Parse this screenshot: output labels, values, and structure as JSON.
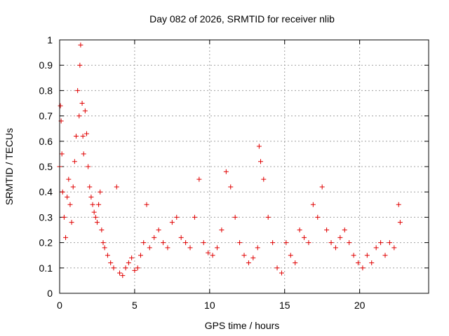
{
  "chart_data": {
    "type": "scatter",
    "title": "Day 082 of 2026, SRMTID for receiver nlib",
    "xlabel": "GPS time / hours",
    "ylabel": "SRMTID / TECUs",
    "xlim": [
      0,
      24.6
    ],
    "ylim": [
      0,
      1
    ],
    "xticks": [
      0,
      5,
      10,
      15,
      20
    ],
    "xtick_labels": [
      "0",
      "5",
      "10",
      "15",
      "20"
    ],
    "yticks": [
      0,
      0.1,
      0.2,
      0.3,
      0.4,
      0.5,
      0.6,
      0.7,
      0.8,
      0.9,
      1
    ],
    "ytick_labels": [
      "0",
      "0.1",
      "0.2",
      "0.3",
      "0.4",
      "0.5",
      "0.6",
      "0.7",
      "0.8",
      "0.9",
      "1"
    ],
    "grid": true,
    "marker": "+",
    "color": "#e00000",
    "series": [
      {
        "name": "SRMTID",
        "x": [
          0.0,
          0.05,
          0.1,
          0.15,
          0.2,
          0.3,
          0.4,
          0.5,
          0.6,
          0.7,
          0.8,
          0.9,
          1.0,
          1.1,
          1.2,
          1.3,
          1.35,
          1.4,
          1.5,
          1.55,
          1.6,
          1.7,
          1.8,
          1.9,
          2.0,
          2.1,
          2.2,
          2.3,
          2.4,
          2.5,
          2.6,
          2.7,
          2.8,
          2.9,
          3.0,
          3.2,
          3.4,
          3.6,
          3.8,
          4.0,
          4.2,
          4.4,
          4.6,
          4.8,
          5.0,
          5.2,
          5.4,
          5.6,
          5.8,
          6.0,
          6.3,
          6.6,
          6.9,
          7.2,
          7.5,
          7.8,
          8.1,
          8.4,
          8.7,
          9.0,
          9.3,
          9.6,
          9.9,
          10.2,
          10.5,
          10.8,
          11.1,
          11.4,
          11.7,
          12.0,
          12.3,
          12.6,
          12.9,
          13.2,
          13.3,
          13.4,
          13.6,
          13.9,
          14.2,
          14.5,
          14.8,
          15.1,
          15.4,
          15.7,
          16.0,
          16.3,
          16.6,
          16.9,
          17.2,
          17.5,
          17.8,
          18.1,
          18.4,
          18.7,
          19.0,
          19.3,
          19.6,
          19.9,
          20.2,
          20.5,
          20.8,
          21.1,
          21.4,
          21.7,
          22.0,
          22.3,
          22.6,
          22.7
        ],
        "y": [
          0.5,
          0.74,
          0.68,
          0.55,
          0.4,
          0.3,
          0.22,
          0.38,
          0.45,
          0.35,
          0.28,
          0.42,
          0.52,
          0.62,
          0.8,
          0.7,
          0.9,
          0.98,
          0.75,
          0.62,
          0.55,
          0.72,
          0.63,
          0.5,
          0.42,
          0.38,
          0.35,
          0.32,
          0.3,
          0.28,
          0.35,
          0.4,
          0.25,
          0.2,
          0.18,
          0.15,
          0.12,
          0.1,
          0.42,
          0.08,
          0.07,
          0.1,
          0.12,
          0.14,
          0.09,
          0.1,
          0.15,
          0.2,
          0.35,
          0.18,
          0.22,
          0.25,
          0.2,
          0.18,
          0.28,
          0.3,
          0.22,
          0.2,
          0.18,
          0.3,
          0.45,
          0.2,
          0.16,
          0.15,
          0.18,
          0.25,
          0.48,
          0.42,
          0.3,
          0.2,
          0.15,
          0.12,
          0.14,
          0.18,
          0.58,
          0.52,
          0.45,
          0.3,
          0.2,
          0.1,
          0.08,
          0.2,
          0.15,
          0.12,
          0.25,
          0.22,
          0.2,
          0.35,
          0.3,
          0.42,
          0.25,
          0.2,
          0.18,
          0.22,
          0.25,
          0.2,
          0.15,
          0.12,
          0.1,
          0.15,
          0.12,
          0.18,
          0.2,
          0.15,
          0.2,
          0.18,
          0.35,
          0.28
        ]
      }
    ]
  }
}
